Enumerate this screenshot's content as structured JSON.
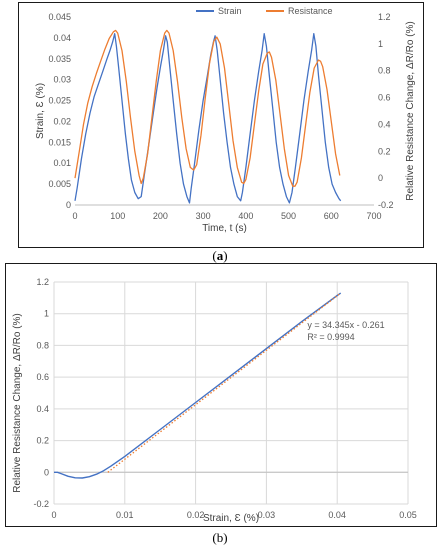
{
  "captions": {
    "a_prefix": "(",
    "a_letter": "a",
    "a_suffix": ")",
    "b_text": "(b)"
  },
  "chart_data": [
    {
      "type": "line",
      "panel": "a",
      "xlabel": "Time, t (s)",
      "ylabel_left": "Strain, Ɛ (%)",
      "ylabel_right": "Relative Resistance Change, ΔR/Ro (%)",
      "xlim": [
        0,
        700
      ],
      "xticks": [
        "0",
        "100",
        "200",
        "300",
        "400",
        "500",
        "600",
        "700"
      ],
      "ylim_left": [
        0,
        0.045
      ],
      "yticks_left": [
        "0",
        "0.005",
        "0.01",
        "0.015",
        "0.02",
        "0.025",
        "0.03",
        "0.035",
        "0.04",
        "0.045"
      ],
      "ylim_right": [
        -0.2,
        1.2
      ],
      "yticks_right": [
        "-0.2",
        "0",
        "0.2",
        "0.4",
        "0.6",
        "0.8",
        "1",
        "1.2"
      ],
      "grid": false,
      "legend": "top",
      "series": [
        {
          "name": "Strain",
          "axis": "left",
          "color": "#4472C4",
          "points": [
            [
              0,
              0.001
            ],
            [
              5,
              0.004
            ],
            [
              15,
              0.011
            ],
            [
              25,
              0.017
            ],
            [
              35,
              0.022
            ],
            [
              45,
              0.026
            ],
            [
              55,
              0.029
            ],
            [
              65,
              0.032
            ],
            [
              75,
              0.035
            ],
            [
              82,
              0.037
            ],
            [
              88,
              0.039
            ],
            [
              93,
              0.041
            ],
            [
              97,
              0.038
            ],
            [
              102,
              0.033
            ],
            [
              110,
              0.025
            ],
            [
              118,
              0.017
            ],
            [
              125,
              0.011
            ],
            [
              132,
              0.006
            ],
            [
              140,
              0.003
            ],
            [
              148,
              0.0015
            ],
            [
              155,
              0.002
            ],
            [
              162,
              0.007
            ],
            [
              172,
              0.014
            ],
            [
              182,
              0.021
            ],
            [
              192,
              0.028
            ],
            [
              200,
              0.033
            ],
            [
              207,
              0.037
            ],
            [
              212,
              0.0405
            ],
            [
              216,
              0.039
            ],
            [
              222,
              0.033
            ],
            [
              230,
              0.025
            ],
            [
              238,
              0.017
            ],
            [
              246,
              0.01
            ],
            [
              254,
              0.005
            ],
            [
              262,
              0.002
            ],
            [
              268,
              0.0005
            ],
            [
              272,
              0.004
            ],
            [
              280,
              0.01
            ],
            [
              290,
              0.018
            ],
            [
              300,
              0.025
            ],
            [
              310,
              0.031
            ],
            [
              318,
              0.036
            ],
            [
              324,
              0.039
            ],
            [
              328,
              0.0405
            ],
            [
              333,
              0.037
            ],
            [
              340,
              0.03
            ],
            [
              348,
              0.022
            ],
            [
              356,
              0.015
            ],
            [
              364,
              0.009
            ],
            [
              372,
              0.005
            ],
            [
              380,
              0.002
            ],
            [
              388,
              0.001
            ],
            [
              392,
              0.003
            ],
            [
              400,
              0.009
            ],
            [
              410,
              0.017
            ],
            [
              420,
              0.025
            ],
            [
              430,
              0.032
            ],
            [
              438,
              0.037
            ],
            [
              443,
              0.041
            ],
            [
              448,
              0.038
            ],
            [
              455,
              0.031
            ],
            [
              463,
              0.023
            ],
            [
              471,
              0.015
            ],
            [
              479,
              0.009
            ],
            [
              487,
              0.005
            ],
            [
              495,
              0.002
            ],
            [
              502,
              0.0005
            ],
            [
              508,
              0.003
            ],
            [
              516,
              0.009
            ],
            [
              526,
              0.017
            ],
            [
              536,
              0.025
            ],
            [
              546,
              0.032
            ],
            [
              554,
              0.037
            ],
            [
              559,
              0.041
            ],
            [
              564,
              0.038
            ],
            [
              570,
              0.031
            ],
            [
              578,
              0.023
            ],
            [
              586,
              0.015
            ],
            [
              594,
              0.009
            ],
            [
              602,
              0.005
            ],
            [
              610,
              0.003
            ],
            [
              618,
              0.0015
            ],
            [
              622,
              0.001
            ]
          ]
        },
        {
          "name": "Resistance",
          "axis": "right",
          "color": "#ED7D31",
          "points": [
            [
              0,
              0
            ],
            [
              10,
              0.2
            ],
            [
              20,
              0.4
            ],
            [
              30,
              0.56
            ],
            [
              40,
              0.68
            ],
            [
              50,
              0.78
            ],
            [
              60,
              0.87
            ],
            [
              70,
              0.96
            ],
            [
              80,
              1.04
            ],
            [
              90,
              1.09
            ],
            [
              95,
              1.1
            ],
            [
              100,
              1.08
            ],
            [
              110,
              0.95
            ],
            [
              120,
              0.72
            ],
            [
              130,
              0.45
            ],
            [
              140,
              0.2
            ],
            [
              150,
              0.02
            ],
            [
              155,
              -0.04
            ],
            [
              160,
              0.0
            ],
            [
              170,
              0.18
            ],
            [
              180,
              0.45
            ],
            [
              190,
              0.72
            ],
            [
              200,
              0.95
            ],
            [
              210,
              1.08
            ],
            [
              215,
              1.1
            ],
            [
              220,
              1.08
            ],
            [
              230,
              0.95
            ],
            [
              240,
              0.72
            ],
            [
              250,
              0.45
            ],
            [
              260,
              0.22
            ],
            [
              270,
              0.08
            ],
            [
              278,
              0.06
            ],
            [
              285,
              0.1
            ],
            [
              295,
              0.32
            ],
            [
              305,
              0.6
            ],
            [
              315,
              0.86
            ],
            [
              325,
              1.02
            ],
            [
              332,
              1.05
            ],
            [
              340,
              1.0
            ],
            [
              350,
              0.82
            ],
            [
              360,
              0.55
            ],
            [
              370,
              0.28
            ],
            [
              380,
              0.08
            ],
            [
              390,
              -0.03
            ],
            [
              395,
              -0.04
            ],
            [
              400,
              -0.01
            ],
            [
              410,
              0.15
            ],
            [
              420,
              0.4
            ],
            [
              430,
              0.65
            ],
            [
              440,
              0.85
            ],
            [
              450,
              0.93
            ],
            [
              455,
              0.94
            ],
            [
              460,
              0.9
            ],
            [
              470,
              0.73
            ],
            [
              480,
              0.48
            ],
            [
              490,
              0.22
            ],
            [
              500,
              0.02
            ],
            [
              510,
              -0.06
            ],
            [
              515,
              -0.06
            ],
            [
              520,
              -0.03
            ],
            [
              530,
              0.15
            ],
            [
              540,
              0.4
            ],
            [
              550,
              0.64
            ],
            [
              560,
              0.82
            ],
            [
              570,
              0.88
            ],
            [
              575,
              0.87
            ],
            [
              580,
              0.83
            ],
            [
              590,
              0.66
            ],
            [
              600,
              0.42
            ],
            [
              610,
              0.18
            ],
            [
              620,
              0.02
            ]
          ]
        }
      ]
    },
    {
      "type": "line",
      "panel": "b",
      "xlabel": "Strain, Ɛ (%)",
      "ylabel": "Relative Resistance Change, ΔR/Ro (%)",
      "xlim": [
        0,
        0.05
      ],
      "xticks": [
        "0",
        "0.01",
        "0.02",
        "0.03",
        "0.04",
        "0.05"
      ],
      "ylim": [
        -0.2,
        1.2
      ],
      "yticks": [
        "-0.2",
        "0",
        "0.2",
        "0.4",
        "0.6",
        "0.8",
        "1",
        "1.2"
      ],
      "grid": true,
      "annotations": [
        "y = 34.345x - 0.261",
        "R² = 0.9994"
      ],
      "series": [
        {
          "color": "#4472C4",
          "points": [
            [
              0,
              0
            ],
            [
              0.0005,
              0.0
            ],
            [
              0.001,
              -0.008
            ],
            [
              0.002,
              -0.025
            ],
            [
              0.003,
              -0.035
            ],
            [
              0.004,
              -0.036
            ],
            [
              0.005,
              -0.028
            ],
            [
              0.006,
              -0.012
            ],
            [
              0.007,
              0.01
            ],
            [
              0.008,
              0.038
            ],
            [
              0.01,
              0.1
            ],
            [
              0.015,
              0.27
            ],
            [
              0.02,
              0.44
            ],
            [
              0.025,
              0.61
            ],
            [
              0.03,
              0.78
            ],
            [
              0.035,
              0.95
            ],
            [
              0.04,
              1.115
            ],
            [
              0.0405,
              1.13
            ]
          ]
        },
        {
          "color": "#ED7D31",
          "style": "dotted",
          "points": [
            [
              0.0076,
              0.0
            ],
            [
              0.0405,
              1.13
            ]
          ]
        }
      ]
    }
  ]
}
